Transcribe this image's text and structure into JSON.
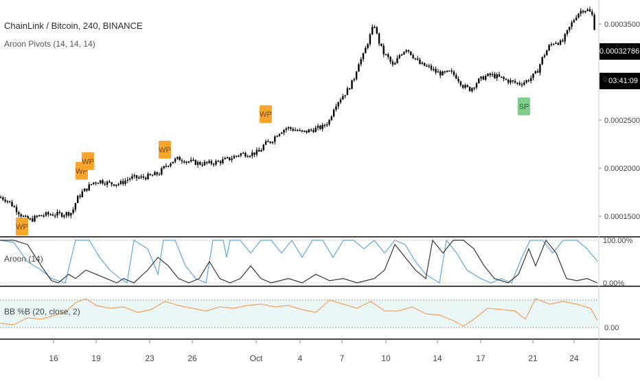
{
  "header": {
    "title": "ChainLink / Bitcoin, 240, BINANCE",
    "indicator": "Aroon Pivots (14, 14, 14)"
  },
  "price_tags": {
    "last_price": "0.00032786",
    "countdown": "03:41:09",
    "hidden_label_prefix": "0."
  },
  "aroon_pane": {
    "label": "Aroon (14)",
    "axis": [
      "100.00%",
      "0.00%"
    ]
  },
  "bb_pane": {
    "label": "BB %B (20, close, 2)",
    "axis": [
      "0.00"
    ]
  },
  "colors": {
    "candle": "#000000",
    "wp_marker": "#f7a52f",
    "sp_marker": "#7fcf8a",
    "aroon_up": "#5aa8e6",
    "aroon_down": "#333333",
    "bb_line": "#f5a15c",
    "bb_band": "#eaf5f5",
    "pane_divider": "#444444"
  },
  "chart_data": {
    "type": "candlestick",
    "price_axis": {
      "ticks": [
        "0.00035000",
        "0.00025000",
        "0.00020000",
        "0.00015000"
      ],
      "ylim": [
        0.00013,
        0.000375
      ]
    },
    "date_axis": [
      "16",
      "19",
      "23",
      "26",
      "Oct",
      "4",
      "7",
      "10",
      "14",
      "17",
      "21",
      "24"
    ],
    "close_path": [
      [
        0,
        0.00017
      ],
      [
        10,
        0.000167
      ],
      [
        20,
        0.00016
      ],
      [
        30,
        0.000152
      ],
      [
        38,
        0.000147
      ],
      [
        45,
        0.000146
      ],
      [
        55,
        0.00015
      ],
      [
        70,
        0.000152
      ],
      [
        90,
        0.000152
      ],
      [
        105,
        0.000154
      ],
      [
        112,
        0.000168
      ],
      [
        120,
        0.000175
      ],
      [
        128,
        0.00018
      ],
      [
        135,
        0.000185
      ],
      [
        145,
        0.000187
      ],
      [
        160,
        0.000184
      ],
      [
        175,
        0.000184
      ],
      [
        190,
        0.00019
      ],
      [
        205,
        0.00019
      ],
      [
        220,
        0.000192
      ],
      [
        232,
        0.000195
      ],
      [
        242,
        0.000203
      ],
      [
        250,
        0.000207
      ],
      [
        260,
        0.00021
      ],
      [
        275,
        0.000207
      ],
      [
        290,
        0.000205
      ],
      [
        305,
        0.000205
      ],
      [
        320,
        0.000207
      ],
      [
        335,
        0.00021
      ],
      [
        350,
        0.000215
      ],
      [
        365,
        0.000215
      ],
      [
        378,
        0.000217
      ],
      [
        385,
        0.000225
      ],
      [
        395,
        0.000228
      ],
      [
        405,
        0.000237
      ],
      [
        418,
        0.000242
      ],
      [
        430,
        0.00024
      ],
      [
        440,
        0.000237
      ],
      [
        455,
        0.00024
      ],
      [
        470,
        0.000243
      ],
      [
        480,
        0.00025
      ],
      [
        487,
        0.000265
      ],
      [
        495,
        0.000272
      ],
      [
        505,
        0.00028
      ],
      [
        515,
        0.000292
      ],
      [
        522,
        0.00031
      ],
      [
        528,
        0.000315
      ],
      [
        535,
        0.00033
      ],
      [
        540,
        0.00034
      ],
      [
        545,
        0.00035
      ],
      [
        550,
        0.000335
      ],
      [
        558,
        0.00032
      ],
      [
        565,
        0.000315
      ],
      [
        573,
        0.000305
      ],
      [
        582,
        0.000318
      ],
      [
        592,
        0.000325
      ],
      [
        600,
        0.000318
      ],
      [
        612,
        0.000308
      ],
      [
        625,
        0.000305
      ],
      [
        635,
        0.0003
      ],
      [
        645,
        0.000298
      ],
      [
        655,
        0.0003
      ],
      [
        665,
        0.000295
      ],
      [
        675,
        0.000285
      ],
      [
        685,
        0.000282
      ],
      [
        695,
        0.00029
      ],
      [
        705,
        0.000295
      ],
      [
        715,
        0.000297
      ],
      [
        725,
        0.000295
      ],
      [
        735,
        0.000292
      ],
      [
        745,
        0.00029
      ],
      [
        755,
        0.000288
      ],
      [
        765,
        0.00029
      ],
      [
        775,
        0.000295
      ],
      [
        782,
        0.0003
      ],
      [
        790,
        0.000315
      ],
      [
        800,
        0.000327
      ],
      [
        808,
        0.000332
      ],
      [
        818,
        0.00033
      ],
      [
        825,
        0.00034
      ],
      [
        832,
        0.00035
      ],
      [
        840,
        0.00036
      ],
      [
        848,
        0.000365
      ],
      [
        855,
        0.000365
      ],
      [
        862,
        0.00036
      ],
      [
        866,
        0.000345
      ],
      [
        870,
        0.000335
      ]
    ],
    "markers": [
      {
        "label": "WP",
        "type": "weak-pivot",
        "x": 32,
        "y": 0.00014
      },
      {
        "label": "WP",
        "type": "weak-pivot",
        "x": 119,
        "y": 0.000198
      },
      {
        "label": "WP",
        "type": "weak-pivot",
        "x": 128,
        "y": 0.000208
      },
      {
        "label": "WP",
        "type": "weak-pivot",
        "x": 240,
        "y": 0.00022
      },
      {
        "label": "WP",
        "type": "weak-pivot",
        "x": 387,
        "y": 0.000257
      },
      {
        "label": "SP",
        "type": "strong-pivot",
        "x": 763,
        "y": 0.000265
      }
    ],
    "aroon": {
      "up": [
        [
          0,
          100
        ],
        [
          20,
          95
        ],
        [
          40,
          50
        ],
        [
          60,
          30
        ],
        [
          75,
          10
        ],
        [
          95,
          0
        ],
        [
          110,
          100
        ],
        [
          130,
          100
        ],
        [
          145,
          60
        ],
        [
          160,
          30
        ],
        [
          175,
          10
        ],
        [
          185,
          0
        ],
        [
          195,
          100
        ],
        [
          215,
          80
        ],
        [
          230,
          20
        ],
        [
          238,
          100
        ],
        [
          255,
          100
        ],
        [
          270,
          40
        ],
        [
          285,
          10
        ],
        [
          300,
          0
        ],
        [
          310,
          100
        ],
        [
          325,
          100
        ],
        [
          330,
          60
        ],
        [
          335,
          100
        ],
        [
          350,
          100
        ],
        [
          365,
          70
        ],
        [
          380,
          100
        ],
        [
          395,
          100
        ],
        [
          410,
          70
        ],
        [
          425,
          100
        ],
        [
          440,
          60
        ],
        [
          455,
          100
        ],
        [
          470,
          100
        ],
        [
          485,
          60
        ],
        [
          500,
          100
        ],
        [
          515,
          100
        ],
        [
          530,
          80
        ],
        [
          545,
          100
        ],
        [
          560,
          70
        ],
        [
          575,
          100
        ],
        [
          590,
          90
        ],
        [
          605,
          50
        ],
        [
          620,
          20
        ],
        [
          640,
          0
        ],
        [
          650,
          100
        ],
        [
          665,
          70
        ],
        [
          680,
          30
        ],
        [
          700,
          10
        ],
        [
          715,
          0
        ],
        [
          730,
          10
        ],
        [
          745,
          0
        ],
        [
          760,
          60
        ],
        [
          772,
          100
        ],
        [
          790,
          100
        ],
        [
          805,
          70
        ],
        [
          820,
          100
        ],
        [
          840,
          100
        ],
        [
          855,
          80
        ],
        [
          870,
          50
        ]
      ],
      "down": [
        [
          0,
          100
        ],
        [
          20,
          100
        ],
        [
          40,
          90
        ],
        [
          60,
          40
        ],
        [
          75,
          5
        ],
        [
          85,
          0
        ],
        [
          100,
          20
        ],
        [
          110,
          10
        ],
        [
          125,
          30
        ],
        [
          140,
          20
        ],
        [
          155,
          10
        ],
        [
          170,
          0
        ],
        [
          180,
          10
        ],
        [
          195,
          0
        ],
        [
          215,
          30
        ],
        [
          230,
          60
        ],
        [
          245,
          40
        ],
        [
          260,
          10
        ],
        [
          275,
          0
        ],
        [
          290,
          10
        ],
        [
          305,
          50
        ],
        [
          320,
          10
        ],
        [
          335,
          0
        ],
        [
          350,
          10
        ],
        [
          365,
          40
        ],
        [
          380,
          10
        ],
        [
          395,
          0
        ],
        [
          420,
          10
        ],
        [
          440,
          0
        ],
        [
          460,
          20
        ],
        [
          480,
          5
        ],
        [
          500,
          10
        ],
        [
          520,
          0
        ],
        [
          545,
          10
        ],
        [
          560,
          30
        ],
        [
          575,
          90
        ],
        [
          590,
          60
        ],
        [
          605,
          30
        ],
        [
          620,
          10
        ],
        [
          630,
          100
        ],
        [
          645,
          70
        ],
        [
          660,
          100
        ],
        [
          675,
          100
        ],
        [
          690,
          80
        ],
        [
          705,
          40
        ],
        [
          720,
          10
        ],
        [
          740,
          0
        ],
        [
          755,
          20
        ],
        [
          770,
          80
        ],
        [
          780,
          40
        ],
        [
          795,
          100
        ],
        [
          810,
          70
        ],
        [
          825,
          10
        ],
        [
          840,
          5
        ],
        [
          855,
          10
        ],
        [
          870,
          0
        ]
      ]
    },
    "bb_percent_b": [
      [
        0,
        0.15
      ],
      [
        20,
        0.1
      ],
      [
        40,
        0.35
      ],
      [
        60,
        0.3
      ],
      [
        80,
        0.45
      ],
      [
        95,
        0.55
      ],
      [
        110,
        0.9
      ],
      [
        125,
        1.05
      ],
      [
        140,
        0.8
      ],
      [
        160,
        0.7
      ],
      [
        180,
        0.75
      ],
      [
        200,
        0.55
      ],
      [
        220,
        0.65
      ],
      [
        240,
        0.95
      ],
      [
        260,
        0.8
      ],
      [
        280,
        0.7
      ],
      [
        300,
        0.6
      ],
      [
        320,
        0.75
      ],
      [
        340,
        0.7
      ],
      [
        360,
        0.8
      ],
      [
        380,
        0.85
      ],
      [
        400,
        0.75
      ],
      [
        420,
        0.8
      ],
      [
        440,
        0.65
      ],
      [
        460,
        0.55
      ],
      [
        480,
        1.0
      ],
      [
        500,
        0.85
      ],
      [
        520,
        0.7
      ],
      [
        540,
        0.95
      ],
      [
        560,
        0.6
      ],
      [
        580,
        0.6
      ],
      [
        600,
        0.75
      ],
      [
        620,
        0.5
      ],
      [
        640,
        0.45
      ],
      [
        660,
        0.25
      ],
      [
        675,
        0.05
      ],
      [
        690,
        0.3
      ],
      [
        710,
        0.7
      ],
      [
        730,
        0.65
      ],
      [
        750,
        0.6
      ],
      [
        765,
        0.3
      ],
      [
        780,
        1.05
      ],
      [
        800,
        0.85
      ],
      [
        820,
        0.95
      ],
      [
        840,
        0.85
      ],
      [
        860,
        0.7
      ],
      [
        870,
        0.25
      ]
    ]
  }
}
